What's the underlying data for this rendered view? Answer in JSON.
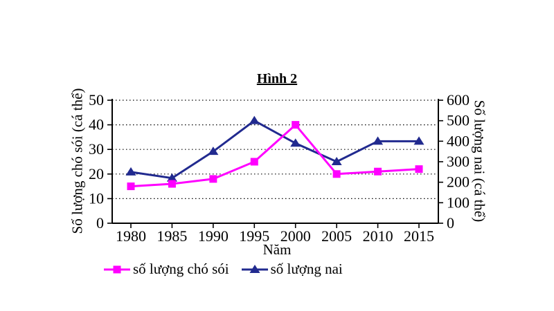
{
  "chart_data": {
    "type": "line",
    "title": "Hình 2",
    "xlabel": "Năm",
    "x_categories": [
      "1980",
      "1985",
      "1990",
      "1995",
      "2000",
      "2005",
      "2010",
      "2015"
    ],
    "axes": {
      "left": {
        "label": "Số lượng chó sói (cá thể)",
        "min": 0,
        "max": 50,
        "step": 10
      },
      "right": {
        "label": "Số lượng nai (cá thể)",
        "min": 0,
        "max": 600,
        "step": 100
      }
    },
    "grid": {
      "horizontal": true,
      "style": "dotted"
    },
    "legend_position": "bottom",
    "series": [
      {
        "name": "số lượng chó sói",
        "axis": "left",
        "marker": "square",
        "color": "#FF00FF",
        "values": [
          15,
          16,
          18,
          25,
          40,
          20,
          21,
          22
        ]
      },
      {
        "name": "số lượng nai",
        "axis": "right",
        "marker": "triangle",
        "color": "#212A8F",
        "values": [
          250,
          220,
          350,
          500,
          390,
          300,
          400,
          400
        ]
      }
    ]
  }
}
